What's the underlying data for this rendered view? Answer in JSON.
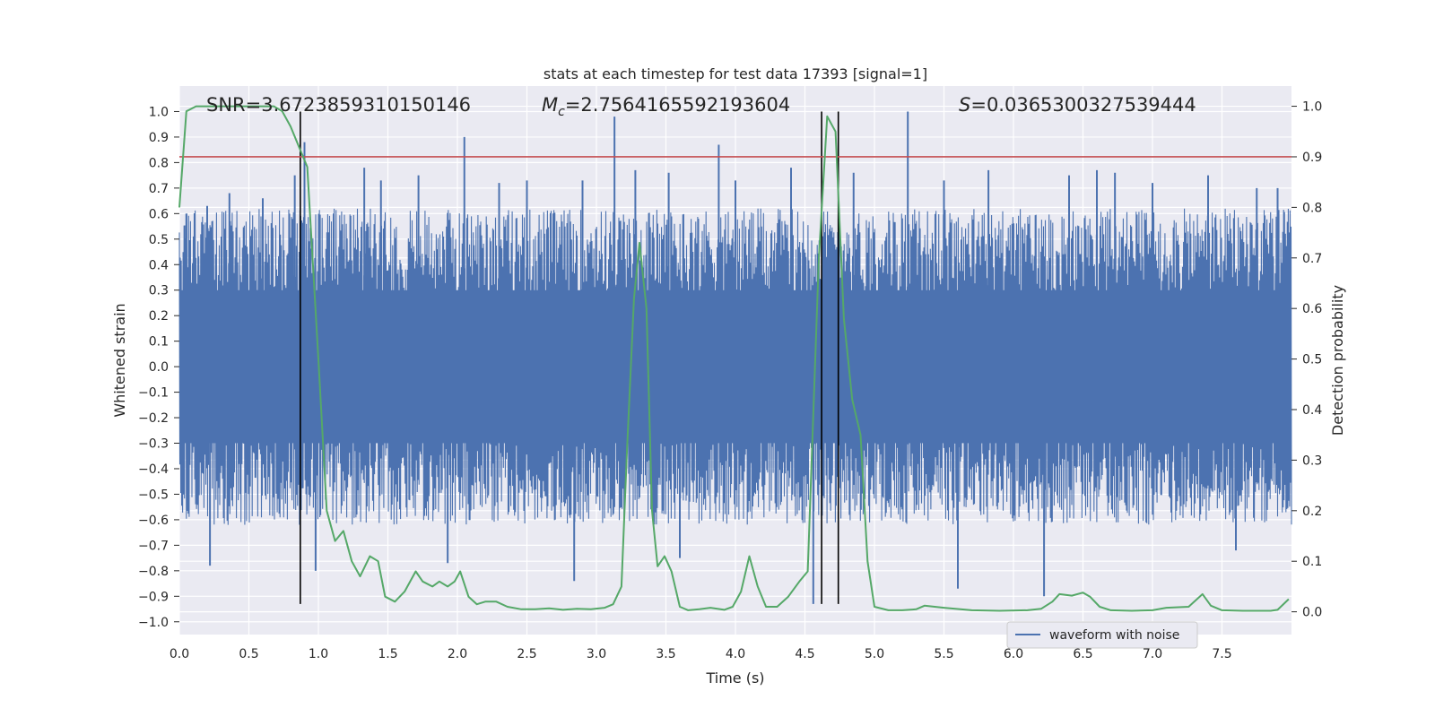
{
  "chart_data": {
    "type": "line",
    "title": "stats at each timestep for test data 17393 [signal=1]",
    "xlabel": "Time (s)",
    "ylabel": "Whitened strain",
    "ylabel_right": "Detection probability",
    "xlim": [
      0,
      8.0
    ],
    "ylim": [
      -1.05,
      1.1
    ],
    "ylim_right": [
      -0.045,
      1.04
    ],
    "x_ticks": [
      0.0,
      0.5,
      1.0,
      1.5,
      2.0,
      2.5,
      3.0,
      3.5,
      4.0,
      4.5,
      5.0,
      5.5,
      6.0,
      6.5,
      7.0,
      7.5
    ],
    "x_tick_labels": [
      "0.0",
      "0.5",
      "1.0",
      "1.5",
      "2.0",
      "2.5",
      "3.0",
      "3.5",
      "4.0",
      "4.5",
      "5.0",
      "5.5",
      "6.0",
      "6.5",
      "7.0",
      "7.5"
    ],
    "y_ticks": [
      -1.0,
      -0.9,
      -0.8,
      -0.7,
      -0.6,
      -0.5,
      -0.4,
      -0.3,
      -0.2,
      -0.1,
      0.0,
      0.1,
      0.2,
      0.3,
      0.4,
      0.5,
      0.6,
      0.7,
      0.8,
      0.9,
      1.0
    ],
    "y_tick_labels": [
      "−1.0",
      "−0.9",
      "−0.8",
      "−0.7",
      "−0.6",
      "−0.5",
      "−0.4",
      "−0.3",
      "−0.2",
      "−0.1",
      "0.0",
      "0.1",
      "0.2",
      "0.3",
      "0.4",
      "0.5",
      "0.6",
      "0.7",
      "0.8",
      "0.9",
      "1.0"
    ],
    "y_right_ticks": [
      0.0,
      0.1,
      0.2,
      0.3,
      0.4,
      0.5,
      0.6,
      0.7,
      0.8,
      0.9,
      1.0
    ],
    "y_right_tick_labels": [
      "0.0",
      "0.1",
      "0.2",
      "0.3",
      "0.4",
      "0.5",
      "0.6",
      "0.7",
      "0.8",
      "0.9",
      "1.0"
    ],
    "grid": true,
    "legend": {
      "placement": "lower-right",
      "entries": [
        {
          "name": "waveform with noise",
          "color": "#4c72b0"
        }
      ]
    },
    "annotations": [
      {
        "name": "SNR",
        "value": "=3.6723859310150146"
      },
      {
        "name": "M_c",
        "value": "=2.7564165592193604"
      },
      {
        "name": "S",
        "value": "=0.0365300327539444"
      }
    ],
    "threshold": {
      "axis": "right",
      "y": 0.9,
      "color": "#c44e52"
    },
    "vertical_markers": [
      {
        "x": 0.87,
        "y_from": -0.93,
        "y_to": 1.0
      },
      {
        "x": 4.62,
        "y_from": -0.93,
        "y_to": 1.0
      },
      {
        "x": 4.74,
        "y_from": -0.93,
        "y_to": 1.0
      }
    ],
    "series": [
      {
        "name": "waveform with noise",
        "axis": "left",
        "kind": "noise-waveform",
        "color": "#4c72b0",
        "x_range": [
          0,
          8.0
        ],
        "envelope": 0.62,
        "spikes": [
          {
            "x": 0.05,
            "y": 0.6
          },
          {
            "x": 0.2,
            "y": 0.63
          },
          {
            "x": 0.22,
            "y": -0.78
          },
          {
            "x": 0.36,
            "y": 0.68
          },
          {
            "x": 0.6,
            "y": 0.66
          },
          {
            "x": 0.83,
            "y": 0.75
          },
          {
            "x": 0.9,
            "y": 0.88
          },
          {
            "x": 0.98,
            "y": -0.8
          },
          {
            "x": 1.33,
            "y": 0.78
          },
          {
            "x": 1.45,
            "y": 0.73
          },
          {
            "x": 1.72,
            "y": 0.75
          },
          {
            "x": 1.93,
            "y": -0.77
          },
          {
            "x": 2.05,
            "y": 0.9
          },
          {
            "x": 2.3,
            "y": 0.72
          },
          {
            "x": 2.5,
            "y": 0.73
          },
          {
            "x": 2.84,
            "y": -0.84
          },
          {
            "x": 2.9,
            "y": 0.73
          },
          {
            "x": 3.13,
            "y": 0.98
          },
          {
            "x": 3.28,
            "y": 0.77
          },
          {
            "x": 3.52,
            "y": 0.76
          },
          {
            "x": 3.6,
            "y": -0.75
          },
          {
            "x": 3.88,
            "y": 0.87
          },
          {
            "x": 4.0,
            "y": 0.73
          },
          {
            "x": 4.4,
            "y": 0.78
          },
          {
            "x": 4.56,
            "y": -0.93
          },
          {
            "x": 4.85,
            "y": 0.76
          },
          {
            "x": 5.24,
            "y": 1.0
          },
          {
            "x": 5.5,
            "y": 0.73
          },
          {
            "x": 5.6,
            "y": -0.87
          },
          {
            "x": 5.82,
            "y": 0.77
          },
          {
            "x": 6.22,
            "y": -0.9
          },
          {
            "x": 6.4,
            "y": 0.75
          },
          {
            "x": 6.6,
            "y": 0.77
          },
          {
            "x": 6.73,
            "y": 0.76
          },
          {
            "x": 7.0,
            "y": 0.72
          },
          {
            "x": 7.4,
            "y": 0.75
          },
          {
            "x": 7.6,
            "y": -0.72
          },
          {
            "x": 7.75,
            "y": 0.7
          },
          {
            "x": 7.9,
            "y": 0.7
          }
        ]
      },
      {
        "name": "",
        "axis": "right",
        "kind": "line",
        "color": "#55a868",
        "points": [
          [
            0.0,
            0.8
          ],
          [
            0.05,
            0.99
          ],
          [
            0.12,
            1.0
          ],
          [
            0.25,
            1.0
          ],
          [
            0.4,
            1.0
          ],
          [
            0.55,
            1.0
          ],
          [
            0.68,
            1.0
          ],
          [
            0.74,
            0.99
          ],
          [
            0.8,
            0.96
          ],
          [
            0.86,
            0.92
          ],
          [
            0.92,
            0.88
          ],
          [
            1.0,
            0.5
          ],
          [
            1.06,
            0.2
          ],
          [
            1.12,
            0.14
          ],
          [
            1.18,
            0.16
          ],
          [
            1.24,
            0.1
          ],
          [
            1.3,
            0.07
          ],
          [
            1.37,
            0.11
          ],
          [
            1.43,
            0.1
          ],
          [
            1.48,
            0.03
          ],
          [
            1.55,
            0.02
          ],
          [
            1.62,
            0.04
          ],
          [
            1.7,
            0.08
          ],
          [
            1.75,
            0.06
          ],
          [
            1.82,
            0.05
          ],
          [
            1.87,
            0.06
          ],
          [
            1.93,
            0.05
          ],
          [
            1.98,
            0.06
          ],
          [
            2.02,
            0.08
          ],
          [
            2.08,
            0.03
          ],
          [
            2.14,
            0.015
          ],
          [
            2.2,
            0.02
          ],
          [
            2.28,
            0.02
          ],
          [
            2.36,
            0.01
          ],
          [
            2.46,
            0.005
          ],
          [
            2.56,
            0.005
          ],
          [
            2.66,
            0.007
          ],
          [
            2.76,
            0.004
          ],
          [
            2.86,
            0.006
          ],
          [
            2.96,
            0.005
          ],
          [
            3.06,
            0.008
          ],
          [
            3.12,
            0.015
          ],
          [
            3.18,
            0.05
          ],
          [
            3.22,
            0.32
          ],
          [
            3.27,
            0.62
          ],
          [
            3.31,
            0.73
          ],
          [
            3.36,
            0.6
          ],
          [
            3.4,
            0.2
          ],
          [
            3.44,
            0.09
          ],
          [
            3.49,
            0.11
          ],
          [
            3.54,
            0.08
          ],
          [
            3.6,
            0.01
          ],
          [
            3.66,
            0.003
          ],
          [
            3.74,
            0.005
          ],
          [
            3.82,
            0.008
          ],
          [
            3.92,
            0.004
          ],
          [
            3.98,
            0.01
          ],
          [
            4.04,
            0.04
          ],
          [
            4.1,
            0.11
          ],
          [
            4.16,
            0.05
          ],
          [
            4.22,
            0.01
          ],
          [
            4.3,
            0.01
          ],
          [
            4.38,
            0.03
          ],
          [
            4.46,
            0.06
          ],
          [
            4.52,
            0.08
          ],
          [
            4.6,
            0.7
          ],
          [
            4.66,
            0.98
          ],
          [
            4.72,
            0.95
          ],
          [
            4.78,
            0.58
          ],
          [
            4.84,
            0.42
          ],
          [
            4.9,
            0.35
          ],
          [
            4.95,
            0.1
          ],
          [
            5.0,
            0.01
          ],
          [
            5.1,
            0.003
          ],
          [
            5.2,
            0.003
          ],
          [
            5.3,
            0.005
          ],
          [
            5.36,
            0.012
          ],
          [
            5.5,
            0.008
          ],
          [
            5.7,
            0.003
          ],
          [
            5.9,
            0.002
          ],
          [
            6.1,
            0.003
          ],
          [
            6.2,
            0.006
          ],
          [
            6.28,
            0.02
          ],
          [
            6.33,
            0.035
          ],
          [
            6.42,
            0.032
          ],
          [
            6.5,
            0.038
          ],
          [
            6.55,
            0.03
          ],
          [
            6.62,
            0.01
          ],
          [
            6.7,
            0.003
          ],
          [
            6.85,
            0.002
          ],
          [
            7.0,
            0.003
          ],
          [
            7.1,
            0.008
          ],
          [
            7.26,
            0.01
          ],
          [
            7.36,
            0.035
          ],
          [
            7.42,
            0.012
          ],
          [
            7.5,
            0.003
          ],
          [
            7.65,
            0.002
          ],
          [
            7.85,
            0.002
          ],
          [
            7.9,
            0.004
          ],
          [
            7.98,
            0.025
          ]
        ]
      }
    ]
  }
}
